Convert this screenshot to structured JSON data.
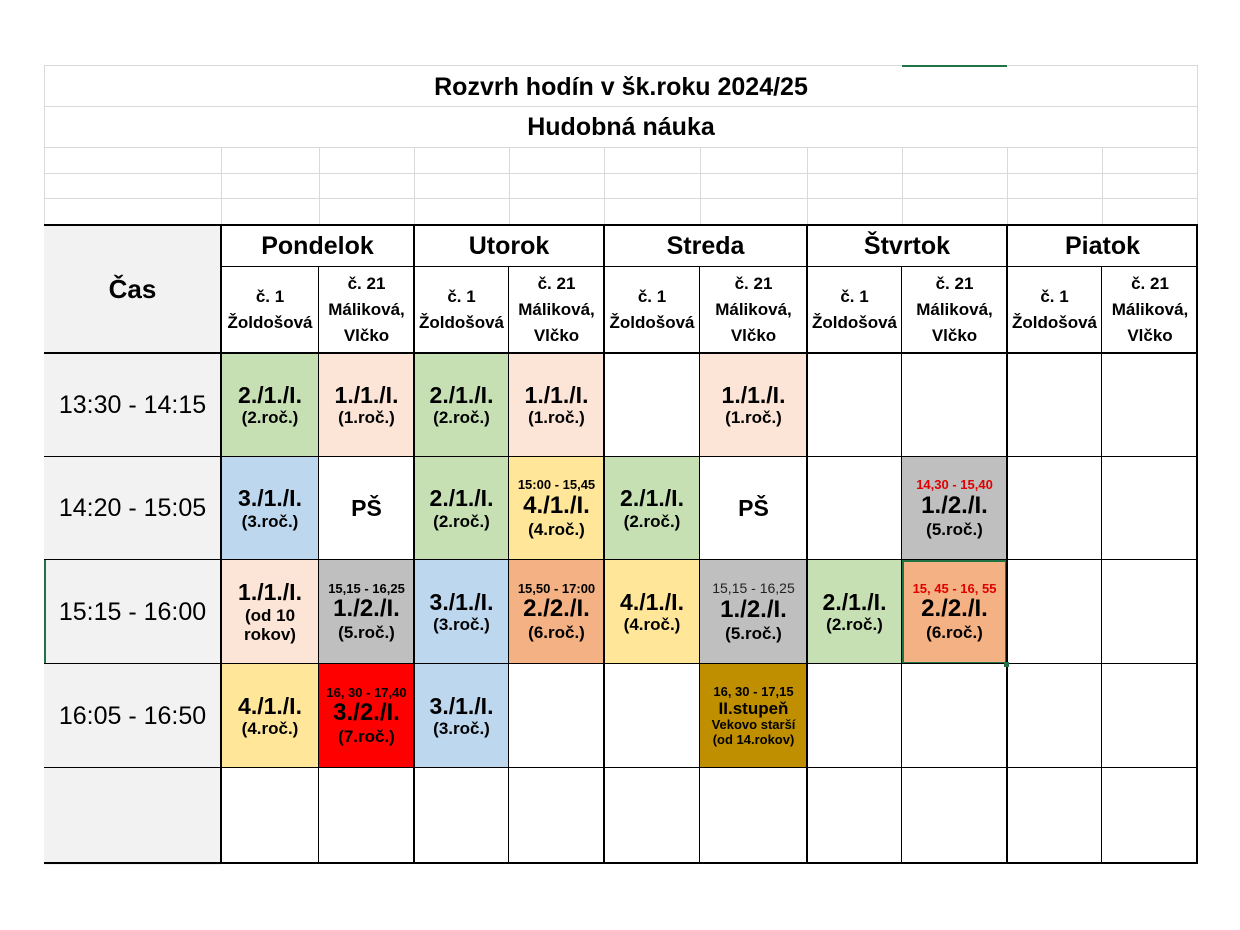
{
  "header": {
    "title": "Rozvrh hodín v šk.roku 2024/25",
    "subtitle": "Hudobná náuka"
  },
  "time_header": "Čas",
  "days": [
    "Pondelok",
    "Utorok",
    "Streda",
    "Štvrtok",
    "Piatok"
  ],
  "rooms": [
    {
      "line1": "č. 1",
      "line2": "Žoldošová"
    },
    {
      "line1": "č. 21",
      "line2": "Máliková,",
      "line3": "Vlčko"
    }
  ],
  "times": [
    "13:30 - 14:15",
    "14:20 - 15:05",
    "15:15 - 16:00",
    "16:05 - 16:50"
  ],
  "colors": {
    "green": "#c6e0b4",
    "peach": "#fce4d6",
    "blue": "#bdd7ee",
    "yellow": "#ffe699",
    "gray": "#bfbfbf",
    "orange": "#f4b183",
    "red": "#ff0000",
    "gold": "#bf8f00",
    "header_gray": "#f2f2f2",
    "selection": "#217346"
  },
  "lessons": {
    "r0": {
      "c0": {
        "cls": "2./1./I.",
        "yr": "(2.roč.)"
      },
      "c1": {
        "cls": "1./1./I.",
        "yr": "(1.roč.)"
      },
      "c2": {
        "cls": "2./1./I.",
        "yr": "(2.roč.)"
      },
      "c3": {
        "cls": "1./1./I.",
        "yr": "(1.roč.)"
      },
      "c5": {
        "cls": "1./1./I.",
        "yr": "(1.roč.)"
      }
    },
    "r1": {
      "c0": {
        "cls": "3./1./I.",
        "yr": "(3.roč.)"
      },
      "c1": {
        "cls": "PŠ"
      },
      "c2": {
        "cls": "2./1./I.",
        "yr": "(2.roč.)"
      },
      "c3": {
        "tm": "15:00 - 15,45",
        "cls": "4./1./I.",
        "yr": "(4.roč.)"
      },
      "c4": {
        "cls": "2./1./I.",
        "yr": "(2.roč.)"
      },
      "c5": {
        "cls": "PŠ"
      },
      "c7": {
        "tm": "14,30 - 15,40",
        "cls": "1./2./I.",
        "yr": "(5.roč.)"
      }
    },
    "r2": {
      "c0": {
        "cls": "1./1./I.",
        "l2": "(od 10",
        "l3": "rokov)"
      },
      "c1": {
        "tm": "15,15 - 16,25",
        "cls": "1./2./I.",
        "yr": "(5.roč.)"
      },
      "c2": {
        "cls": "3./1./I.",
        "yr": "(3.roč.)"
      },
      "c3": {
        "tm": "15,50 - 17:00",
        "cls": "2./2./I.",
        "yr": "(6.roč.)"
      },
      "c4": {
        "cls": "4./1./I.",
        "yr": "(4.roč.)"
      },
      "c5": {
        "tm": "15,15 - 16,25",
        "cls": "1./2./I.",
        "yr": "(5.roč.)"
      },
      "c6": {
        "cls": "2./1./I.",
        "yr": "(2.roč.)"
      },
      "c7": {
        "tm": "15, 45 - 16, 55",
        "cls": "2./2./I.",
        "yr": "(6.roč.)"
      }
    },
    "r3": {
      "c0": {
        "cls": "4./1./I.",
        "yr": "(4.roč.)"
      },
      "c1": {
        "tm": "16, 30 - 17,40",
        "cls": "3./2./I.",
        "yr": "(7.roč.)"
      },
      "c2": {
        "cls": "3./1./I.",
        "yr": "(3.roč.)"
      },
      "c5": {
        "tm": "16, 30 - 17,15",
        "l1": "II.stupeň",
        "l2": "Vekovo starší",
        "l3": "(od 14.rokov)"
      }
    }
  }
}
